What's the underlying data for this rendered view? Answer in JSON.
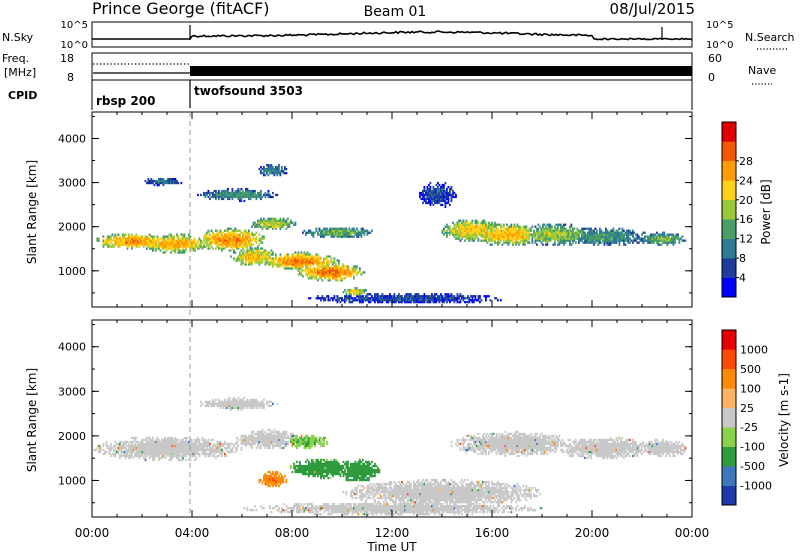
{
  "header": {
    "station": "Prince George (fitACF)",
    "beam": "Beam 01",
    "date": "08/Jul/2015"
  },
  "nsky_panel": {
    "left_label": "N.Sky",
    "right_label": "N.Search",
    "left_ticks": [
      "10^5",
      "10^0"
    ],
    "right_ticks": [
      "10^5",
      "10^0"
    ]
  },
  "freq_panel": {
    "left_label_1": "Freq.",
    "left_label_2": "[MHz]",
    "right_label": "Nave",
    "left_ticks": [
      "18",
      "8"
    ],
    "right_ticks": [
      "60",
      "0"
    ]
  },
  "cpid_panel": {
    "label": "CPID",
    "programs": [
      {
        "name": "rbsp 200",
        "start_hour": 0
      },
      {
        "name": "twofsound 3503",
        "start_hour": 4
      }
    ]
  },
  "chart_data": [
    {
      "type": "heatmap",
      "quantity": "power",
      "ylabel": "Slant Range [km]",
      "ylim": [
        180,
        4600
      ],
      "yticks": [
        "1000",
        "2000",
        "3000",
        "4000"
      ],
      "xlim_hours": [
        0,
        24
      ],
      "colorbar": {
        "label": "Power [dB]",
        "ticks": [
          "4",
          "8",
          "12",
          "16",
          "20",
          "24",
          "28"
        ],
        "colors": [
          "#0000ff",
          "#1e3c9c",
          "#2e7d94",
          "#4aa064",
          "#9bc83a",
          "#ffd11a",
          "#ff9d00",
          "#f35800",
          "#e00000"
        ]
      }
    },
    {
      "type": "heatmap",
      "quantity": "velocity",
      "ylabel": "Slant Range [km]",
      "ylim": [
        180,
        4600
      ],
      "yticks": [
        "1000",
        "2000",
        "3000",
        "4000"
      ],
      "xlim_hours": [
        0,
        24
      ],
      "colorbar": {
        "label": "Velocity [m s-1]",
        "ticks": [
          "1000",
          "500",
          "100",
          "25",
          "-25",
          "-100",
          "-500",
          "-1000"
        ],
        "colors": [
          "#1f3aa8",
          "#3e78bc",
          "#2e9b3c",
          "#8ad24a",
          "#c8c8c8",
          "#ffb266",
          "#ff8a00",
          "#ff4a00",
          "#e60000"
        ]
      }
    }
  ],
  "xaxis": {
    "label": "Time UT",
    "ticks": [
      "00:00",
      "04:00",
      "08:00",
      "12:00",
      "16:00",
      "20:00",
      "00:00"
    ]
  }
}
